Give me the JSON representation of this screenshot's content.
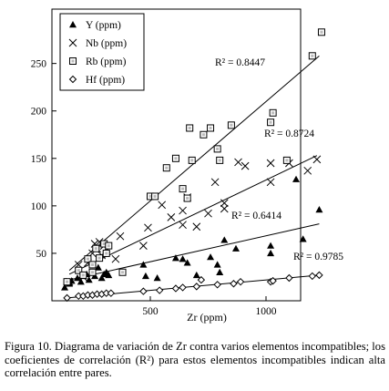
{
  "chart_data": {
    "type": "scatter",
    "xlabel": "Zr (ppm)",
    "ylabel": "",
    "xlim": [
      0,
      1250
    ],
    "ylim": [
      0,
      290
    ],
    "x_ticks": [
      500,
      1000
    ],
    "y_ticks": [
      50,
      100,
      150,
      200,
      250
    ],
    "grid": false,
    "legend_position": "top-left",
    "series": [
      {
        "name": "Y (ppm)",
        "marker": "filled-triangle",
        "points": [
          [
            130,
            14
          ],
          [
            150,
            18
          ],
          [
            160,
            21
          ],
          [
            185,
            24
          ],
          [
            200,
            20
          ],
          [
            210,
            26
          ],
          [
            225,
            28
          ],
          [
            235,
            22
          ],
          [
            250,
            30
          ],
          [
            260,
            26
          ],
          [
            275,
            35
          ],
          [
            290,
            24
          ],
          [
            300,
            28
          ],
          [
            310,
            30
          ],
          [
            320,
            27
          ],
          [
            470,
            38
          ],
          [
            480,
            26
          ],
          [
            530,
            24
          ],
          [
            610,
            45
          ],
          [
            640,
            44
          ],
          [
            660,
            40
          ],
          [
            700,
            27
          ],
          [
            760,
            46
          ],
          [
            790,
            38
          ],
          [
            800,
            30
          ],
          [
            820,
            64
          ],
          [
            870,
            55
          ],
          [
            1020,
            50
          ],
          [
            1020,
            58
          ],
          [
            1160,
            65
          ],
          [
            1130,
            128
          ],
          [
            1230,
            96
          ]
        ],
        "fit": {
          "r2_label": "R² = 0.6414",
          "x": [
            150,
            1230
          ],
          "y": [
            22,
            81
          ]
        }
      },
      {
        "name": "Nb (ppm)",
        "marker": "x-cross",
        "points": [
          [
            150,
            20
          ],
          [
            190,
            38
          ],
          [
            210,
            25
          ],
          [
            230,
            40
          ],
          [
            250,
            50
          ],
          [
            260,
            60
          ],
          [
            270,
            55
          ],
          [
            280,
            62
          ],
          [
            290,
            48
          ],
          [
            300,
            58
          ],
          [
            310,
            55
          ],
          [
            350,
            44
          ],
          [
            370,
            68
          ],
          [
            470,
            58
          ],
          [
            490,
            77
          ],
          [
            550,
            101
          ],
          [
            590,
            88
          ],
          [
            640,
            80
          ],
          [
            640,
            95
          ],
          [
            660,
            109
          ],
          [
            700,
            78
          ],
          [
            750,
            92
          ],
          [
            780,
            125
          ],
          [
            820,
            103
          ],
          [
            820,
            97
          ],
          [
            880,
            146
          ],
          [
            910,
            142
          ],
          [
            1020,
            145
          ],
          [
            1020,
            125
          ],
          [
            1100,
            145
          ],
          [
            1180,
            137
          ],
          [
            1220,
            149
          ]
        ],
        "fit": {
          "r2_label": "R² = 0.8724",
          "x": [
            150,
            1220
          ],
          "y": [
            28,
            153
          ]
        }
      },
      {
        "name": "Rb (ppm)",
        "marker": "open-square",
        "points": [
          [
            140,
            20
          ],
          [
            190,
            32
          ],
          [
            210,
            27
          ],
          [
            230,
            44
          ],
          [
            250,
            38
          ],
          [
            250,
            30
          ],
          [
            265,
            55
          ],
          [
            280,
            45
          ],
          [
            300,
            60
          ],
          [
            310,
            50
          ],
          [
            320,
            58
          ],
          [
            380,
            30
          ],
          [
            500,
            110
          ],
          [
            520,
            110
          ],
          [
            570,
            140
          ],
          [
            610,
            150
          ],
          [
            640,
            118
          ],
          [
            670,
            182
          ],
          [
            680,
            148
          ],
          [
            730,
            175
          ],
          [
            760,
            182
          ],
          [
            790,
            160
          ],
          [
            800,
            148
          ],
          [
            850,
            185
          ],
          [
            1020,
            188
          ],
          [
            1030,
            198
          ],
          [
            1090,
            148
          ],
          [
            1200,
            258
          ],
          [
            1240,
            283
          ],
          [
            660,
            108
          ]
        ],
        "fit": {
          "r2_label": "R² = 0.8447",
          "x": [
            150,
            1230
          ],
          "y": [
            32,
            258
          ]
        }
      },
      {
        "name": "Hf (ppm)",
        "marker": "open-diamond",
        "points": [
          [
            140,
            3
          ],
          [
            190,
            5
          ],
          [
            210,
            5
          ],
          [
            230,
            6
          ],
          [
            250,
            6
          ],
          [
            270,
            7
          ],
          [
            290,
            7
          ],
          [
            310,
            8
          ],
          [
            330,
            8
          ],
          [
            470,
            10
          ],
          [
            540,
            11
          ],
          [
            610,
            13
          ],
          [
            640,
            14
          ],
          [
            700,
            15
          ],
          [
            720,
            22
          ],
          [
            790,
            17
          ],
          [
            860,
            18
          ],
          [
            890,
            20
          ],
          [
            1020,
            20
          ],
          [
            1030,
            21
          ],
          [
            1100,
            24
          ],
          [
            1200,
            26
          ],
          [
            1230,
            27
          ]
        ],
        "fit": {
          "r2_label": "R² = 0.9785",
          "x": [
            140,
            1230
          ],
          "y": [
            3,
            27
          ]
        }
      }
    ]
  },
  "caption": "Figura 10. Diagrama de variación de Zr contra varios elementos incompatibles; los coeficientes de correlación (R²) para estos elementos incompatibles indican alta correlación entre pares."
}
